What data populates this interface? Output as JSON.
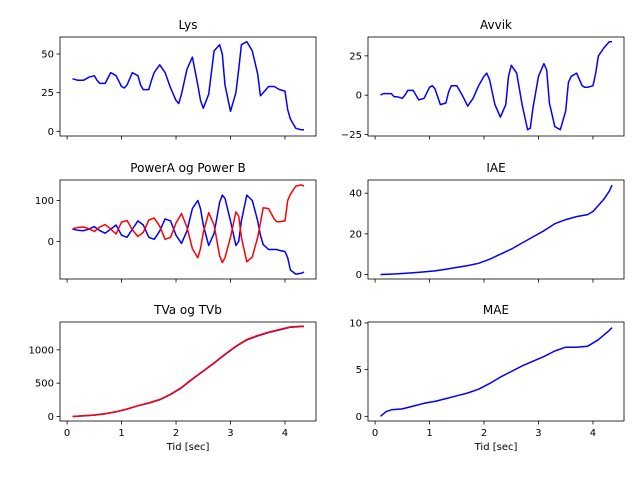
{
  "chart_data": [
    {
      "type": "line",
      "title": "Lys",
      "xlabel": "",
      "xlim": [
        -0.13,
        4.57
      ],
      "ylim": [
        -3,
        61
      ],
      "xticks": [
        0,
        1,
        2,
        3,
        4
      ],
      "show_xticklabels": false,
      "yticks": [
        0,
        25,
        50
      ],
      "yticklabels": [
        "0",
        "25",
        "50"
      ],
      "series": [
        {
          "color": "#0000ff",
          "x": [
            0.1,
            0.2,
            0.3,
            0.4,
            0.5,
            0.55,
            0.6,
            0.7,
            0.8,
            0.9,
            1.0,
            1.05,
            1.1,
            1.2,
            1.3,
            1.35,
            1.4,
            1.5,
            1.55,
            1.6,
            1.7,
            1.8,
            1.9,
            2.0,
            2.05,
            2.1,
            2.2,
            2.3,
            2.4,
            2.45,
            2.5,
            2.6,
            2.7,
            2.8,
            2.85,
            2.9,
            3.0,
            3.1,
            3.15,
            3.2,
            3.3,
            3.4,
            3.5,
            3.55,
            3.6,
            3.7,
            3.8,
            3.85,
            3.9,
            4.0,
            4.05,
            4.1,
            4.2,
            4.3,
            4.35
          ],
          "y": [
            34,
            33,
            33,
            35,
            36,
            33,
            31,
            31,
            38,
            36,
            29,
            28,
            30,
            38,
            36,
            30,
            27,
            27,
            33,
            38,
            43,
            38,
            28,
            20,
            18,
            24,
            40,
            48,
            30,
            20,
            15,
            24,
            52,
            56,
            50,
            30,
            13,
            25,
            40,
            56,
            58,
            52,
            37,
            23,
            25,
            29,
            29,
            28,
            27,
            26,
            14,
            8,
            2,
            1,
            1
          ]
        },
        {
          "color": "#0000ff",
          "x": [],
          "y": []
        }
      ]
    },
    {
      "type": "line",
      "title": "Avvik",
      "xlabel": "",
      "xlim": [
        -0.13,
        4.57
      ],
      "ylim": [
        -26,
        37
      ],
      "xticks": [
        0,
        1,
        2,
        3,
        4
      ],
      "show_xticklabels": false,
      "yticks": [
        -25,
        0,
        25
      ],
      "yticklabels": [
        "−25",
        "0",
        "25"
      ],
      "series": [
        {
          "color": "#0000ff",
          "x": [
            0.1,
            0.15,
            0.3,
            0.35,
            0.4,
            0.5,
            0.55,
            0.6,
            0.7,
            0.8,
            0.9,
            1.0,
            1.05,
            1.1,
            1.2,
            1.3,
            1.35,
            1.4,
            1.5,
            1.6,
            1.7,
            1.8,
            1.9,
            2.0,
            2.05,
            2.1,
            2.2,
            2.3,
            2.4,
            2.45,
            2.5,
            2.6,
            2.7,
            2.8,
            2.85,
            2.9,
            3.0,
            3.1,
            3.15,
            3.2,
            3.3,
            3.4,
            3.5,
            3.55,
            3.6,
            3.7,
            3.8,
            3.85,
            3.9,
            4.0,
            4.05,
            4.1,
            4.2,
            4.3,
            4.35
          ],
          "y": [
            0,
            1,
            1,
            -1,
            -1,
            -2,
            0,
            3,
            3,
            -3,
            -2,
            5,
            6,
            4,
            -6,
            -5,
            2,
            6,
            6,
            0,
            -7,
            -2,
            6,
            12,
            14,
            10,
            -6,
            -14,
            -6,
            12,
            19,
            14,
            -6,
            -22,
            -21,
            -8,
            12,
            20,
            16,
            -5,
            -20,
            -22,
            -10,
            8,
            12,
            14,
            6,
            5,
            5,
            6,
            14,
            25,
            30,
            34,
            34
          ]
        },
        {
          "color": "#0000ff",
          "x": [],
          "y": []
        }
      ]
    },
    {
      "type": "line",
      "title": "PowerA og Power B",
      "xlabel": "",
      "xlim": [
        -0.13,
        4.57
      ],
      "ylim": [
        -92,
        150
      ],
      "xticks": [
        0,
        1,
        2,
        3,
        4
      ],
      "show_xticklabels": false,
      "yticks": [
        0,
        100
      ],
      "yticklabels": [
        "0",
        "100"
      ],
      "series": [
        {
          "color": "#0000ff",
          "x": [
            0.1,
            0.2,
            0.3,
            0.4,
            0.5,
            0.6,
            0.7,
            0.8,
            0.9,
            1.0,
            1.1,
            1.2,
            1.3,
            1.4,
            1.5,
            1.6,
            1.7,
            1.8,
            1.9,
            2.0,
            2.1,
            2.2,
            2.3,
            2.4,
            2.45,
            2.5,
            2.6,
            2.7,
            2.8,
            2.85,
            2.9,
            3.0,
            3.1,
            3.15,
            3.2,
            3.3,
            3.4,
            3.5,
            3.55,
            3.6,
            3.7,
            3.8,
            3.85,
            3.9,
            4.0,
            4.05,
            4.1,
            4.2,
            4.3,
            4.35
          ],
          "y": [
            30,
            27,
            26,
            30,
            36,
            26,
            20,
            30,
            40,
            15,
            10,
            30,
            50,
            40,
            10,
            5,
            25,
            55,
            50,
            15,
            -5,
            25,
            80,
            100,
            80,
            40,
            -10,
            20,
            95,
            113,
            105,
            50,
            -10,
            0,
            50,
            113,
            100,
            50,
            15,
            -8,
            -20,
            -20,
            -20,
            -22,
            -25,
            -40,
            -70,
            -80,
            -78,
            -75
          ]
        },
        {
          "color": "#ff0000",
          "x": [
            0.1,
            0.2,
            0.3,
            0.4,
            0.5,
            0.6,
            0.7,
            0.8,
            0.9,
            1.0,
            1.1,
            1.2,
            1.3,
            1.4,
            1.5,
            1.6,
            1.7,
            1.8,
            1.9,
            2.0,
            2.1,
            2.2,
            2.3,
            2.4,
            2.45,
            2.5,
            2.6,
            2.7,
            2.8,
            2.85,
            2.9,
            3.0,
            3.1,
            3.15,
            3.2,
            3.3,
            3.4,
            3.5,
            3.55,
            3.6,
            3.7,
            3.8,
            3.85,
            3.9,
            4.0,
            4.05,
            4.1,
            4.2,
            4.3,
            4.35
          ],
          "y": [
            31,
            34,
            35,
            31,
            24,
            35,
            41,
            30,
            18,
            47,
            51,
            28,
            12,
            22,
            52,
            57,
            37,
            5,
            10,
            45,
            68,
            35,
            -18,
            -40,
            -18,
            22,
            70,
            40,
            -35,
            -52,
            -40,
            10,
            72,
            62,
            10,
            -50,
            -38,
            10,
            45,
            82,
            80,
            55,
            48,
            48,
            50,
            100,
            115,
            135,
            138,
            135
          ]
        }
      ]
    },
    {
      "type": "line",
      "title": "IAE",
      "xlabel": "",
      "xlim": [
        -0.13,
        4.57
      ],
      "ylim": [
        -2.2,
        46.5
      ],
      "xticks": [
        0,
        1,
        2,
        3,
        4
      ],
      "show_xticklabels": false,
      "yticks": [
        0,
        20,
        40
      ],
      "yticklabels": [
        "0",
        "20",
        "40"
      ],
      "series": [
        {
          "color": "#0000ff",
          "x": [
            0.1,
            0.3,
            0.5,
            0.7,
            0.9,
            1.1,
            1.3,
            1.5,
            1.7,
            1.9,
            2.1,
            2.3,
            2.5,
            2.7,
            2.9,
            3.1,
            3.3,
            3.5,
            3.7,
            3.9,
            4.0,
            4.1,
            4.2,
            4.3,
            4.35
          ],
          "y": [
            0,
            0.2,
            0.5,
            0.9,
            1.3,
            1.8,
            2.6,
            3.5,
            4.4,
            5.5,
            7.5,
            10,
            12.5,
            15.5,
            18.5,
            21.5,
            25,
            27,
            28.5,
            29.5,
            31,
            34,
            37,
            41,
            44
          ]
        },
        {
          "color": "#0000ff",
          "x": [],
          "y": []
        }
      ]
    },
    {
      "type": "line",
      "title": "TVa og TVb",
      "xlabel": "Tid [sec]",
      "xlim": [
        -0.13,
        4.57
      ],
      "ylim": [
        -68,
        1418
      ],
      "xticks": [
        0,
        1,
        2,
        3,
        4
      ],
      "show_xticklabels": true,
      "xticklabels": [
        "0",
        "1",
        "2",
        "3",
        "4"
      ],
      "yticks": [
        0,
        500,
        1000
      ],
      "yticklabels": [
        "0",
        "500",
        "1000"
      ],
      "series": [
        {
          "color": "#0000ff",
          "x": [
            0.1,
            0.3,
            0.5,
            0.7,
            0.9,
            1.1,
            1.3,
            1.5,
            1.7,
            1.9,
            2.1,
            2.3,
            2.5,
            2.7,
            2.9,
            3.1,
            3.3,
            3.5,
            3.7,
            3.9,
            4.1,
            4.3,
            4.35
          ],
          "y": [
            0,
            8,
            20,
            40,
            70,
            110,
            160,
            200,
            250,
            330,
            430,
            560,
            680,
            800,
            930,
            1050,
            1150,
            1210,
            1260,
            1300,
            1340,
            1350,
            1350
          ]
        },
        {
          "color": "#ff0000",
          "x": [
            0.1,
            0.3,
            0.5,
            0.7,
            0.9,
            1.1,
            1.3,
            1.5,
            1.7,
            1.9,
            2.1,
            2.3,
            2.5,
            2.7,
            2.9,
            3.1,
            3.3,
            3.5,
            3.7,
            3.9,
            4.1,
            4.3,
            4.35
          ],
          "y": [
            0,
            10,
            22,
            42,
            72,
            112,
            162,
            203,
            255,
            335,
            435,
            565,
            685,
            805,
            935,
            1055,
            1155,
            1215,
            1265,
            1305,
            1345,
            1355,
            1355
          ]
        }
      ]
    },
    {
      "type": "line",
      "title": "MAE",
      "xlabel": "Tid [sec]",
      "xlim": [
        -0.13,
        4.57
      ],
      "ylim": [
        -0.5,
        10.1
      ],
      "xticks": [
        0,
        1,
        2,
        3,
        4
      ],
      "show_xticklabels": true,
      "xticklabels": [
        "0",
        "1",
        "2",
        "3",
        "4"
      ],
      "yticks": [
        0,
        5,
        10
      ],
      "yticklabels": [
        "0",
        "5",
        "10"
      ],
      "series": [
        {
          "color": "#0000ff",
          "x": [
            0.1,
            0.2,
            0.3,
            0.5,
            0.7,
            0.9,
            1.1,
            1.3,
            1.5,
            1.7,
            1.9,
            2.1,
            2.3,
            2.5,
            2.7,
            2.9,
            3.1,
            3.3,
            3.5,
            3.7,
            3.9,
            4.1,
            4.3,
            4.35
          ],
          "y": [
            0,
            0.5,
            0.7,
            0.8,
            1.1,
            1.4,
            1.6,
            1.9,
            2.2,
            2.5,
            2.9,
            3.5,
            4.2,
            4.8,
            5.4,
            5.9,
            6.4,
            7.0,
            7.4,
            7.4,
            7.5,
            8.2,
            9.2,
            9.5
          ]
        },
        {
          "color": "#0000ff",
          "x": [],
          "y": []
        }
      ]
    }
  ]
}
